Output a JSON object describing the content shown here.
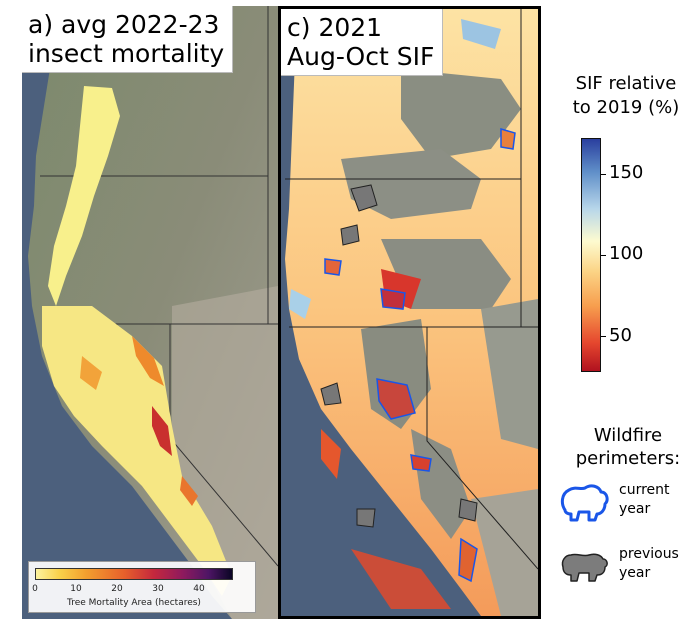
{
  "panel_a": {
    "title_line1": "a) avg 2022-23",
    "title_line2": "insect mortality",
    "colorbar": {
      "ticks": [
        "0",
        "10",
        "20",
        "30",
        "40"
      ],
      "label": "Tree Mortality Area (hectares)",
      "range": [
        0,
        48
      ]
    }
  },
  "panel_c": {
    "title_line1": "c) 2021",
    "title_line2": "Aug-Oct SIF"
  },
  "sif_legend": {
    "title_line1": "SIF relative",
    "title_line2": "to 2019 (%)",
    "ticks": [
      "150",
      "100",
      "50"
    ],
    "colors": {
      "high": "#2a3f9e",
      "mid": "#fdfbd0",
      "low": "#b0121f"
    }
  },
  "wildfire_legend": {
    "title_line1": "Wildfire",
    "title_line2": "perimeters:",
    "current_line1": "current",
    "current_line2": "year",
    "previous_line1": "previous",
    "previous_line2": "year",
    "current_color": "#1a56e8",
    "previous_color": "#7c7c7c"
  },
  "icons": [
    "bear-outline-blue-icon",
    "bear-filled-gray-icon"
  ]
}
